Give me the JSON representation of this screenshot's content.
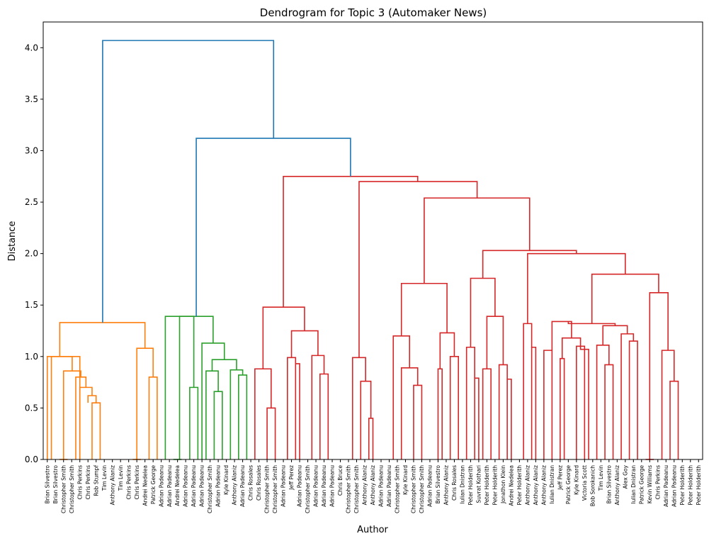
{
  "chart_data": {
    "type": "dendrogram",
    "title": "Dendrogram for Topic 3 (Automaker News)",
    "xlabel": "Author",
    "ylabel": "Distance",
    "ylim": [
      0,
      4.25
    ],
    "yticks": [
      "0.0",
      "0.5",
      "1.0",
      "1.5",
      "2.0",
      "2.5",
      "3.0",
      "3.5",
      "4.0"
    ],
    "grid": false,
    "leaves": [
      "Brian Silvestro",
      "Brian Silvestro",
      "Christopher Smith",
      "Christopher Smith",
      "Chris Perkins",
      "Chris Perkins",
      "Rob Stumpf",
      "Tim Levin",
      "Anthony Alaniz",
      "Tim Levin",
      "Chris Perkins",
      "Chris Perkins",
      "Andrei Nedelea",
      "Patrick George",
      "Adrian Padeanu",
      "Adrian Padeanu",
      "Andrei Nedelea",
      "Adrian Padeanu",
      "Adrian Padeanu",
      "Adrian Padeanu",
      "Christopher Smith",
      "Adrian Padeanu",
      "Kyle Kinard",
      "Anthony Alaniz",
      "Adrian Padeanu",
      "Chris Rosales",
      "Chris Rosales",
      "Christopher Smith",
      "Christopher Smith",
      "Adrian Padeanu",
      "Jeff Perez",
      "Adrian Padeanu",
      "Christopher Smith",
      "Adrian Padeanu",
      "Adrian Padeanu",
      "Adrian Padeanu",
      "Chris Bruce",
      "Christopher Smith",
      "Christopher Smith",
      "Anthony Alaniz",
      "Anthony Alaniz",
      "Adrian Padeanu",
      "Adrian Padeanu",
      "Christopher Smith",
      "Kyle Kinard",
      "Christopher Smith",
      "Christopher Smith",
      "Adrian Padeanu",
      "Brian Silvestro",
      "Anthony Alaniz",
      "Chris Rosales",
      "Iulian Dnistran",
      "Peter Holderith",
      "Suvrat Kothari",
      "Peter Holderith",
      "Peter Holderith",
      "Jonathon Klein",
      "Andrei Nedelea",
      "Peter Holderith",
      "Anthony Alaniz",
      "Anthony Alaniz",
      "Anthony Alaniz",
      "Iulian Dnistran",
      "Jeff Perez",
      "Patrick George",
      "Kyle Kinard",
      "Victoria Scott",
      "Bob Sorokanich",
      "Tim Levin",
      "Brian Silvestro",
      "Anthony Alaniz",
      "Alex Goy",
      "Iulian Dnistran",
      "Patrick George",
      "Kevin Williams",
      "Chris Perkins",
      "Adrian Padeanu",
      "Adrian Padeanu",
      "Peter Holderith",
      "Peter Holderith",
      "Peter Holderith"
    ],
    "color_groups": [
      {
        "color": "#ff7f0e",
        "leaf_range": [
          0,
          13
        ],
        "height_range": [
          0,
          1.33
        ]
      },
      {
        "color": "#2ca02c",
        "leaf_range": [
          14,
          24
        ],
        "height_range": [
          0,
          1.39
        ]
      },
      {
        "color": "#d62728",
        "leaf_range": [
          25,
          80
        ],
        "height_range": [
          0,
          2.75
        ]
      }
    ],
    "above_threshold_color": "#1f77b4",
    "links": [
      [
        [
          0.5,
          0
        ],
        [
          0.5,
          1.0
        ],
        [
          4.0,
          1.0
        ],
        [
          4.0,
          0
        ]
      ],
      [
        [
          1.5,
          0
        ],
        [
          1.5,
          0
        ],
        [
          2.5,
          0
        ],
        [
          2.5,
          0
        ]
      ],
      [
        [
          5.5,
          0
        ],
        [
          5.5,
          0.55
        ],
        [
          6.5,
          0.55
        ],
        [
          6.5,
          0
        ]
      ],
      [
        [
          5.0,
          0.55
        ],
        [
          5.0,
          0.62
        ],
        [
          6.0,
          0.62
        ],
        [
          6.0,
          0.55
        ]
      ],
      [
        [
          4.0,
          0
        ],
        [
          4.0,
          0.7
        ],
        [
          5.5,
          0.7
        ],
        [
          5.5,
          0.62
        ]
      ],
      [
        [
          3.5,
          0
        ],
        [
          3.5,
          0.8
        ],
        [
          4.75,
          0.8
        ],
        [
          4.75,
          0.7
        ]
      ],
      [
        [
          2.0,
          0
        ],
        [
          2.0,
          0.86
        ],
        [
          4.12,
          0.86
        ],
        [
          4.12,
          0.8
        ]
      ],
      [
        [
          0.0,
          0
        ],
        [
          0.0,
          1.0
        ],
        [
          3.06,
          1.0
        ],
        [
          3.06,
          0.86
        ]
      ],
      [
        [
          10.5,
          0
        ],
        [
          10.5,
          0
        ],
        [
          11.5,
          0
        ],
        [
          11.5,
          0
        ]
      ],
      [
        [
          12.5,
          0
        ],
        [
          12.5,
          0.8
        ],
        [
          13.5,
          0.8
        ],
        [
          13.5,
          0
        ]
      ],
      [
        [
          11.0,
          0
        ],
        [
          11.0,
          1.08
        ],
        [
          13.0,
          1.08
        ],
        [
          13.0,
          0.8
        ]
      ],
      [
        [
          1.53,
          1.0
        ],
        [
          1.53,
          1.33
        ],
        [
          12.0,
          1.33
        ],
        [
          12.0,
          1.08
        ]
      ],
      [
        [
          15.5,
          0
        ],
        [
          15.5,
          0
        ],
        [
          16.5,
          0
        ],
        [
          16.5,
          0
        ]
      ],
      [
        [
          17.5,
          0
        ],
        [
          17.5,
          0.7
        ],
        [
          18.5,
          0.7
        ],
        [
          18.5,
          0
        ]
      ],
      [
        [
          14.5,
          0
        ],
        [
          14.5,
          1.39
        ],
        [
          18.0,
          1.39
        ],
        [
          18.0,
          0.7
        ]
      ],
      [
        [
          20.5,
          0
        ],
        [
          20.5,
          0.66
        ],
        [
          21.5,
          0.66
        ],
        [
          21.5,
          0
        ]
      ],
      [
        [
          19.5,
          0
        ],
        [
          19.5,
          0.86
        ],
        [
          21.0,
          0.86
        ],
        [
          21.0,
          0.66
        ]
      ],
      [
        [
          23.5,
          0
        ],
        [
          23.5,
          0.82
        ],
        [
          24.5,
          0.82
        ],
        [
          24.5,
          0
        ]
      ],
      [
        [
          22.5,
          0
        ],
        [
          22.5,
          0.87
        ],
        [
          24.0,
          0.87
        ],
        [
          24.0,
          0.82
        ]
      ],
      [
        [
          20.25,
          0.86
        ],
        [
          20.25,
          0.97
        ],
        [
          23.25,
          0.97
        ],
        [
          23.25,
          0.87
        ]
      ],
      [
        [
          19.0,
          0
        ],
        [
          19.0,
          1.13
        ],
        [
          21.75,
          1.13
        ],
        [
          21.75,
          0.97
        ]
      ],
      [
        [
          16.25,
          0
        ],
        [
          16.25,
          1.39
        ],
        [
          20.37,
          1.39
        ],
        [
          20.37,
          1.13
        ]
      ],
      [
        [
          25.5,
          0
        ],
        [
          25.5,
          0.88
        ],
        [
          27.5,
          0.88
        ],
        [
          27.5,
          0.5
        ]
      ],
      [
        [
          27.0,
          0
        ],
        [
          27.0,
          0.5
        ],
        [
          28.0,
          0.5
        ],
        [
          28.0,
          0
        ]
      ],
      [
        [
          29.5,
          0
        ],
        [
          29.5,
          0.99
        ],
        [
          30.5,
          0.99
        ],
        [
          30.5,
          0.93
        ]
      ],
      [
        [
          30.5,
          0
        ],
        [
          30.5,
          0.93
        ],
        [
          31.0,
          0.93
        ],
        [
          31.0,
          0
        ]
      ],
      [
        [
          33.5,
          0
        ],
        [
          33.5,
          0.83
        ],
        [
          34.5,
          0.83
        ],
        [
          34.5,
          0
        ]
      ],
      [
        [
          32.5,
          0
        ],
        [
          32.5,
          1.01
        ],
        [
          34.0,
          1.01
        ],
        [
          34.0,
          0.83
        ]
      ],
      [
        [
          30.0,
          0.99
        ],
        [
          30.0,
          1.25
        ],
        [
          33.25,
          1.25
        ],
        [
          33.25,
          1.01
        ]
      ],
      [
        [
          26.5,
          0.88
        ],
        [
          26.5,
          1.48
        ],
        [
          31.6,
          1.48
        ],
        [
          31.6,
          1.25
        ]
      ],
      [
        [
          39.5,
          0
        ],
        [
          39.5,
          0.4
        ],
        [
          40.0,
          0.4
        ],
        [
          40.0,
          0
        ]
      ],
      [
        [
          38.5,
          0
        ],
        [
          38.5,
          0.76
        ],
        [
          39.75,
          0.76
        ],
        [
          39.75,
          0.4
        ]
      ],
      [
        [
          37.5,
          0
        ],
        [
          37.5,
          0.99
        ],
        [
          39.1,
          0.99
        ],
        [
          39.1,
          0.76
        ]
      ],
      [
        [
          45.0,
          0
        ],
        [
          45.0,
          0.72
        ],
        [
          46.0,
          0.72
        ],
        [
          46.0,
          0
        ]
      ],
      [
        [
          43.5,
          0
        ],
        [
          43.5,
          0.89
        ],
        [
          45.5,
          0.89
        ],
        [
          45.5,
          0.72
        ]
      ],
      [
        [
          42.5,
          0
        ],
        [
          42.5,
          1.2
        ],
        [
          44.5,
          1.2
        ],
        [
          44.5,
          0.89
        ]
      ],
      [
        [
          48.0,
          0
        ],
        [
          48.0,
          0.88
        ],
        [
          48.5,
          0.88
        ],
        [
          48.5,
          0
        ]
      ],
      [
        [
          49.5,
          0
        ],
        [
          49.5,
          1.0
        ],
        [
          50.5,
          1.0
        ],
        [
          50.5,
          0
        ]
      ],
      [
        [
          48.25,
          0.88
        ],
        [
          48.25,
          1.23
        ],
        [
          50.0,
          1.23
        ],
        [
          50.0,
          1.0
        ]
      ],
      [
        [
          43.5,
          1.2
        ],
        [
          43.5,
          1.71
        ],
        [
          49.1,
          1.71
        ],
        [
          49.1,
          1.23
        ]
      ]
    ]
  }
}
